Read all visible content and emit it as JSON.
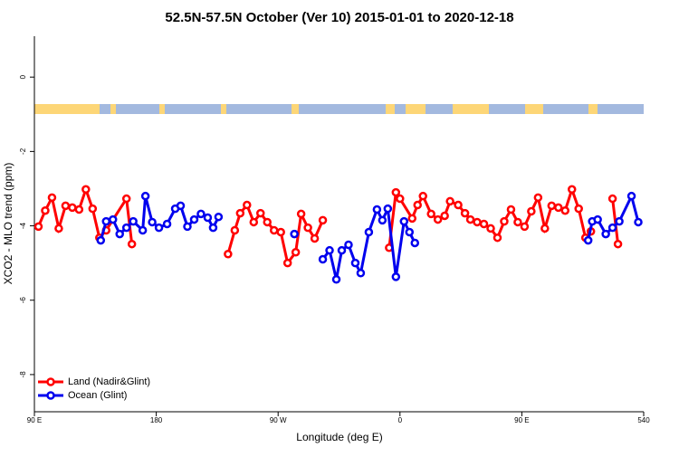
{
  "chart_data": {
    "type": "line",
    "title": "52.5N-57.5N October (Ver 10)   2015-01-01 to 2020-12-18",
    "xlabel": "Longitude (deg E)",
    "ylabel": "XCO2 - MLO trend (ppm)",
    "xlim": [
      90,
      540
    ],
    "xticks": [
      {
        "value": 90,
        "label": "90 E"
      },
      180,
      {
        "value": 270,
        "label": "90 W"
      },
      {
        "value": 360,
        "label": "0"
      },
      {
        "value": 450,
        "label": "90 E"
      },
      540
    ],
    "ylim": [
      -9,
      1.1
    ],
    "yticks": [
      -8,
      -6,
      -4,
      -2,
      0
    ],
    "legend": "bottom-left",
    "series": [
      {
        "name": "Land (Nadir&Glint)",
        "color": "#ff0000",
        "x": [
          93,
          98,
          103,
          108,
          113,
          118,
          123,
          128,
          133,
          138,
          143,
          158,
          162,
          200,
          233,
          238,
          242,
          247,
          252,
          257,
          262,
          267,
          272,
          277,
          283,
          287,
          292,
          297,
          303,
          330,
          352,
          357,
          360,
          369,
          373,
          377,
          383,
          388,
          393,
          397,
          403,
          408,
          412,
          417,
          422,
          427,
          432,
          437,
          442,
          447,
          452,
          457,
          462,
          467,
          472,
          477,
          482,
          487,
          492,
          497,
          501,
          510,
          517,
          521
        ],
        "values": [
          -4.02,
          -3.59,
          -3.24,
          -4.07,
          -3.46,
          -3.51,
          -3.56,
          -3.02,
          -3.54,
          -4.32,
          -4.12,
          -3.27,
          -4.49,
          null,
          -4.76,
          -4.12,
          -3.66,
          -3.44,
          -3.9,
          -3.66,
          -3.9,
          -4.12,
          -4.17,
          -5.0,
          -4.71,
          -3.68,
          -4.05,
          -4.34,
          -3.85,
          null,
          -4.59,
          -3.1,
          -3.27,
          -3.8,
          -3.44,
          -3.2,
          -3.68,
          -3.83,
          -3.73,
          -3.34,
          -3.44,
          -3.66,
          -3.83,
          -3.9,
          -3.95,
          -4.07,
          -4.32,
          -3.88,
          -3.56,
          -3.9,
          -4.02,
          -3.61,
          -3.24,
          -4.07,
          -3.46,
          -3.51,
          -3.59,
          -3.02,
          -3.54,
          -4.32,
          -4.15,
          null,
          -3.27,
          -4.49
        ]
      },
      {
        "name": "Ocean (Glint)",
        "color": "#0000ee",
        "x": [
          139,
          143,
          148,
          153,
          158,
          163,
          170,
          172,
          177,
          182,
          188,
          194,
          198,
          203,
          208,
          213,
          218,
          222,
          226,
          260,
          282,
          300,
          303,
          308,
          313,
          317,
          322,
          327,
          331,
          337,
          343,
          347,
          351,
          357,
          363,
          367,
          371,
          450,
          499,
          502,
          506,
          512,
          517,
          522,
          531,
          536
        ],
        "values": [
          -4.39,
          -3.88,
          -3.83,
          -4.22,
          -4.05,
          -3.88,
          -4.12,
          -3.2,
          -3.9,
          -4.05,
          -3.95,
          -3.54,
          -3.46,
          -4.02,
          -3.83,
          -3.68,
          -3.78,
          -4.05,
          -3.76,
          null,
          -4.22,
          null,
          -4.9,
          -4.66,
          -5.44,
          -4.66,
          -4.51,
          -5.0,
          -5.27,
          -4.17,
          -3.56,
          -3.85,
          -3.54,
          -5.37,
          -3.88,
          -4.17,
          -4.46,
          null,
          -4.39,
          -3.88,
          -3.83,
          -4.22,
          -4.05,
          -3.88,
          -3.2,
          -3.9
        ]
      }
    ]
  }
}
